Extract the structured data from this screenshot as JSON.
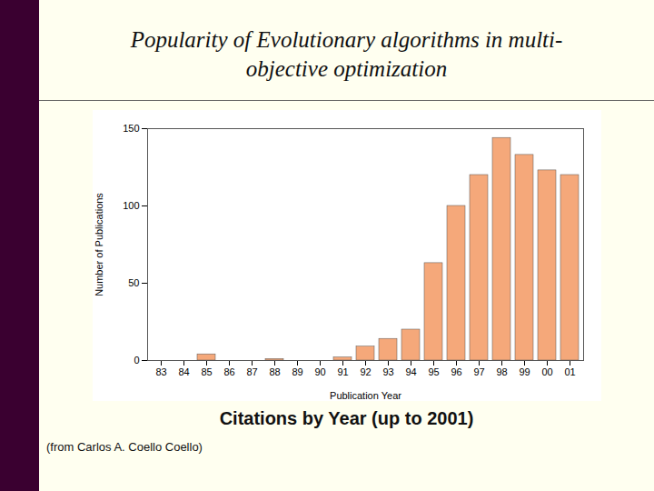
{
  "chart_data": {
    "type": "bar",
    "title": "Popularity of Evolutionary algorithms in multi-\nobjective optimization",
    "subtitle": "Citations by Year (up to 2001)",
    "annotations": [
      "(from Carlos A. Coello Coello)"
    ],
    "xlabel": "Publication Year",
    "ylabel": "Number of Publications",
    "categories": [
      "83",
      "84",
      "85",
      "86",
      "87",
      "88",
      "89",
      "90",
      "91",
      "92",
      "93",
      "94",
      "95",
      "96",
      "97",
      "98",
      "99",
      "00",
      "01"
    ],
    "values": [
      0,
      0,
      4,
      0,
      0,
      1,
      0,
      0,
      2,
      9,
      14,
      20,
      63,
      100,
      120,
      144,
      133,
      123,
      120
    ],
    "color": "#F5A87A",
    "ylim": [
      0,
      150
    ],
    "yticks": [
      0,
      50,
      100,
      150
    ],
    "grid": false
  }
}
